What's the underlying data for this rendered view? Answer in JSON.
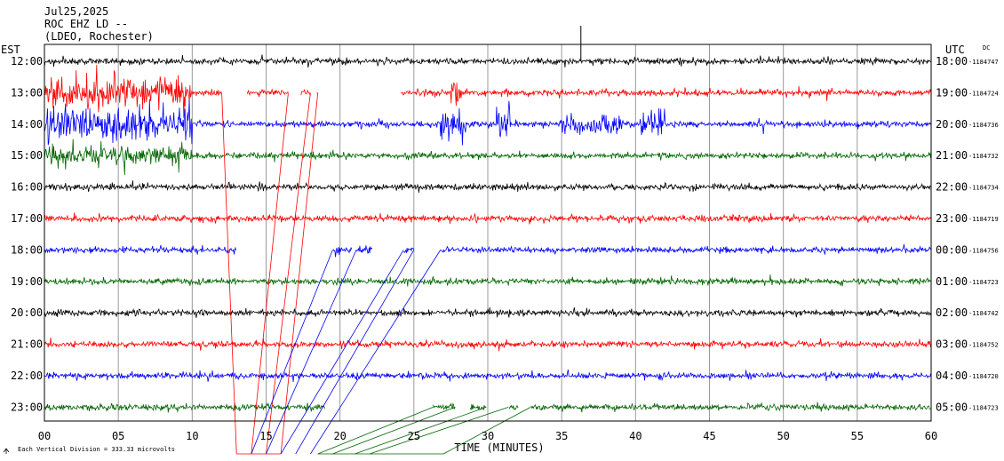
{
  "header": {
    "date": "Jul25,2025",
    "station": "ROC EHZ LD --",
    "network": "(LDEO, Rochester)"
  },
  "left_timezone": "EST",
  "right_timezone": "UTC",
  "dc_label": "DC",
  "footer": {
    "scale_note": "Each Vertical Division =  333.33 microvolts"
  },
  "chart_data": {
    "type": "line",
    "title": "",
    "xlabel": "TIME (MINUTES)",
    "xlim": [
      0,
      60
    ],
    "x_ticks": [
      "00",
      "05",
      "10",
      "15",
      "20",
      "25",
      "30",
      "35",
      "40",
      "45",
      "50",
      "55",
      "60"
    ],
    "trace_colors": [
      "#000000",
      "#ff0000",
      "#0000ff",
      "#006400"
    ],
    "grid": true,
    "rows": [
      {
        "est": "12:00",
        "utc": "18:00",
        "dc": "-1184747",
        "color": "#000000"
      },
      {
        "est": "13:00",
        "utc": "19:00",
        "dc": "-1184724",
        "color": "#ff0000"
      },
      {
        "est": "14:00",
        "utc": "20:00",
        "dc": "-1184736",
        "color": "#0000ff"
      },
      {
        "est": "15:00",
        "utc": "21:00",
        "dc": "-1184732",
        "color": "#006400"
      },
      {
        "est": "16:00",
        "utc": "22:00",
        "dc": "-1184734",
        "color": "#000000"
      },
      {
        "est": "17:00",
        "utc": "23:00",
        "dc": "-1184719",
        "color": "#ff0000"
      },
      {
        "est": "18:00",
        "utc": "00:00",
        "dc": "-1184756",
        "color": "#0000ff"
      },
      {
        "est": "19:00",
        "utc": "01:00",
        "dc": "-1184723",
        "color": "#006400"
      },
      {
        "est": "20:00",
        "utc": "02:00",
        "dc": "-1184742",
        "color": "#000000"
      },
      {
        "est": "21:00",
        "utc": "03:00",
        "dc": "-1184752",
        "color": "#ff0000"
      },
      {
        "est": "22:00",
        "utc": "04:00",
        "dc": "-1184720",
        "color": "#0000ff"
      },
      {
        "est": "23:00",
        "utc": "05:00",
        "dc": "-1184723",
        "color": "#006400"
      }
    ],
    "gaps_minutes": [
      {
        "row": 1,
        "from": 12.0,
        "to": 13.7
      },
      {
        "row": 1,
        "from": 16.5,
        "to": 17.3
      },
      {
        "row": 1,
        "from": 18.0,
        "to": 18.4
      },
      {
        "row": 1,
        "from": 18.5,
        "to": 24.1
      },
      {
        "row": 6,
        "from": 13.0,
        "to": 19.5
      },
      {
        "row": 6,
        "from": 20.8,
        "to": 21.1
      },
      {
        "row": 6,
        "from": 22.2,
        "to": 24.3
      },
      {
        "row": 6,
        "from": 25.0,
        "to": 26.8
      },
      {
        "row": 11,
        "from": 19.0,
        "to": 26.3
      },
      {
        "row": 11,
        "from": 27.8,
        "to": 28.8
      },
      {
        "row": 11,
        "from": 29.9,
        "to": 31.4
      },
      {
        "row": 11,
        "from": 32.1,
        "to": 32.9
      }
    ],
    "events_minutes": [
      {
        "row": 1,
        "from": 0.0,
        "to": 10.0,
        "strength": "strong"
      },
      {
        "row": 2,
        "from": 0.0,
        "to": 10.0,
        "strength": "strong"
      },
      {
        "row": 1,
        "from": 27.5,
        "to": 28.2,
        "strength": "strong"
      },
      {
        "row": 2,
        "from": 26.8,
        "to": 28.5,
        "strength": "strong"
      },
      {
        "row": 2,
        "from": 30.5,
        "to": 31.5,
        "strength": "strong"
      },
      {
        "row": 2,
        "from": 35.0,
        "to": 39.0,
        "strength": "medium"
      },
      {
        "row": 2,
        "from": 40.3,
        "to": 42.0,
        "strength": "strong"
      },
      {
        "row": 3,
        "from": 0.0,
        "to": 10.0,
        "strength": "medium"
      }
    ]
  }
}
